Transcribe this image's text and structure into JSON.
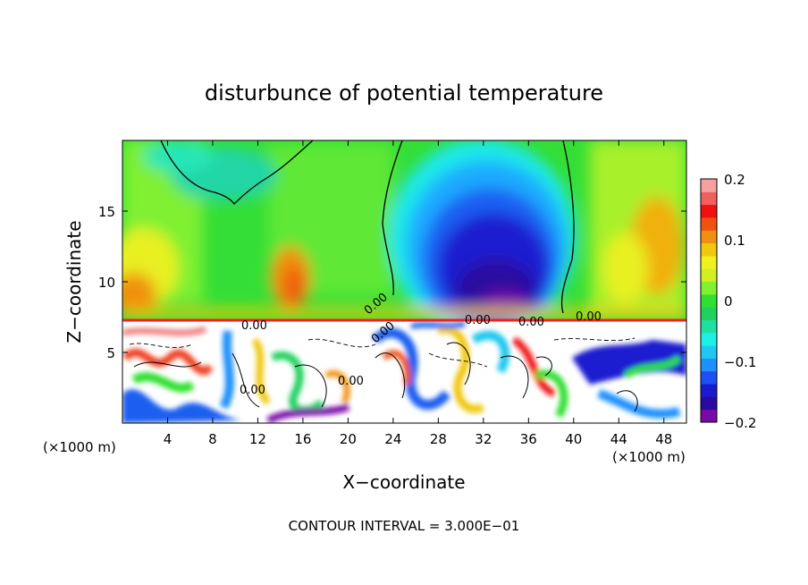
{
  "chart_data": {
    "type": "heatmap",
    "title": "disturbunce of potential temperature",
    "xlabel": "X−coordinate",
    "ylabel": "Z−coordinate",
    "x_unit_left": "(×1000 m)",
    "x_unit_right": "(×1000 m)",
    "xlim": [
      0,
      50
    ],
    "ylim": [
      0,
      20
    ],
    "x_ticks": [
      "4",
      "8",
      "12",
      "16",
      "20",
      "24",
      "28",
      "32",
      "36",
      "40",
      "44",
      "48"
    ],
    "y_ticks": [
      "5",
      "10",
      "15"
    ],
    "x_tick_values": [
      4,
      8,
      12,
      16,
      20,
      24,
      28,
      32,
      36,
      40,
      44,
      48
    ],
    "y_tick_values": [
      5,
      10,
      15
    ],
    "colorbar": {
      "min": -0.2,
      "max": 0.2,
      "tick_labels": [
        "0.2",
        "0.1",
        "0",
        "−0.1",
        "−0.2"
      ],
      "tick_values": [
        0.2,
        0.1,
        0,
        -0.1,
        -0.2
      ],
      "colors": [
        "#7a0aa8",
        "#2a0aa0",
        "#1a1ad0",
        "#1f4ff0",
        "#1e90ff",
        "#1ec8f0",
        "#1ef0e6",
        "#1ee0a0",
        "#20d060",
        "#30e030",
        "#80f030",
        "#d0f020",
        "#f0f020",
        "#f0c810",
        "#f09010",
        "#f05010",
        "#f01010",
        "#f06060",
        "#f8a0a0"
      ]
    },
    "contour_labels": [
      "0.00",
      "0.00",
      "0.00",
      "0.00",
      "0.00",
      "0.00",
      "0.00",
      "0.00"
    ],
    "footer": "CONTOUR INTERVAL = 3.000E−01"
  }
}
